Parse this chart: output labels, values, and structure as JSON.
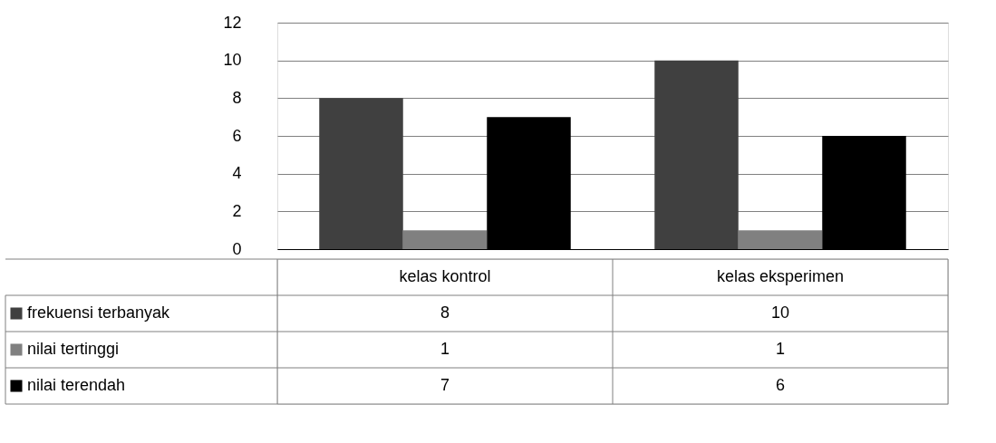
{
  "chart_data": {
    "type": "bar",
    "categories": [
      "kelas kontrol",
      "kelas eksperimen"
    ],
    "series": [
      {
        "name": "frekuensi terbanyak",
        "color": "#404040",
        "values": [
          8,
          10
        ]
      },
      {
        "name": "nilai tertinggi",
        "color": "#808080",
        "values": [
          1,
          1
        ]
      },
      {
        "name": "nilai terendah",
        "color": "#000000",
        "values": [
          7,
          6
        ]
      }
    ],
    "ylim": [
      0,
      12
    ],
    "yticks": [
      0,
      2,
      4,
      6,
      8,
      10,
      12
    ],
    "grid": "y",
    "data_labels": true,
    "legend": "bottom"
  }
}
